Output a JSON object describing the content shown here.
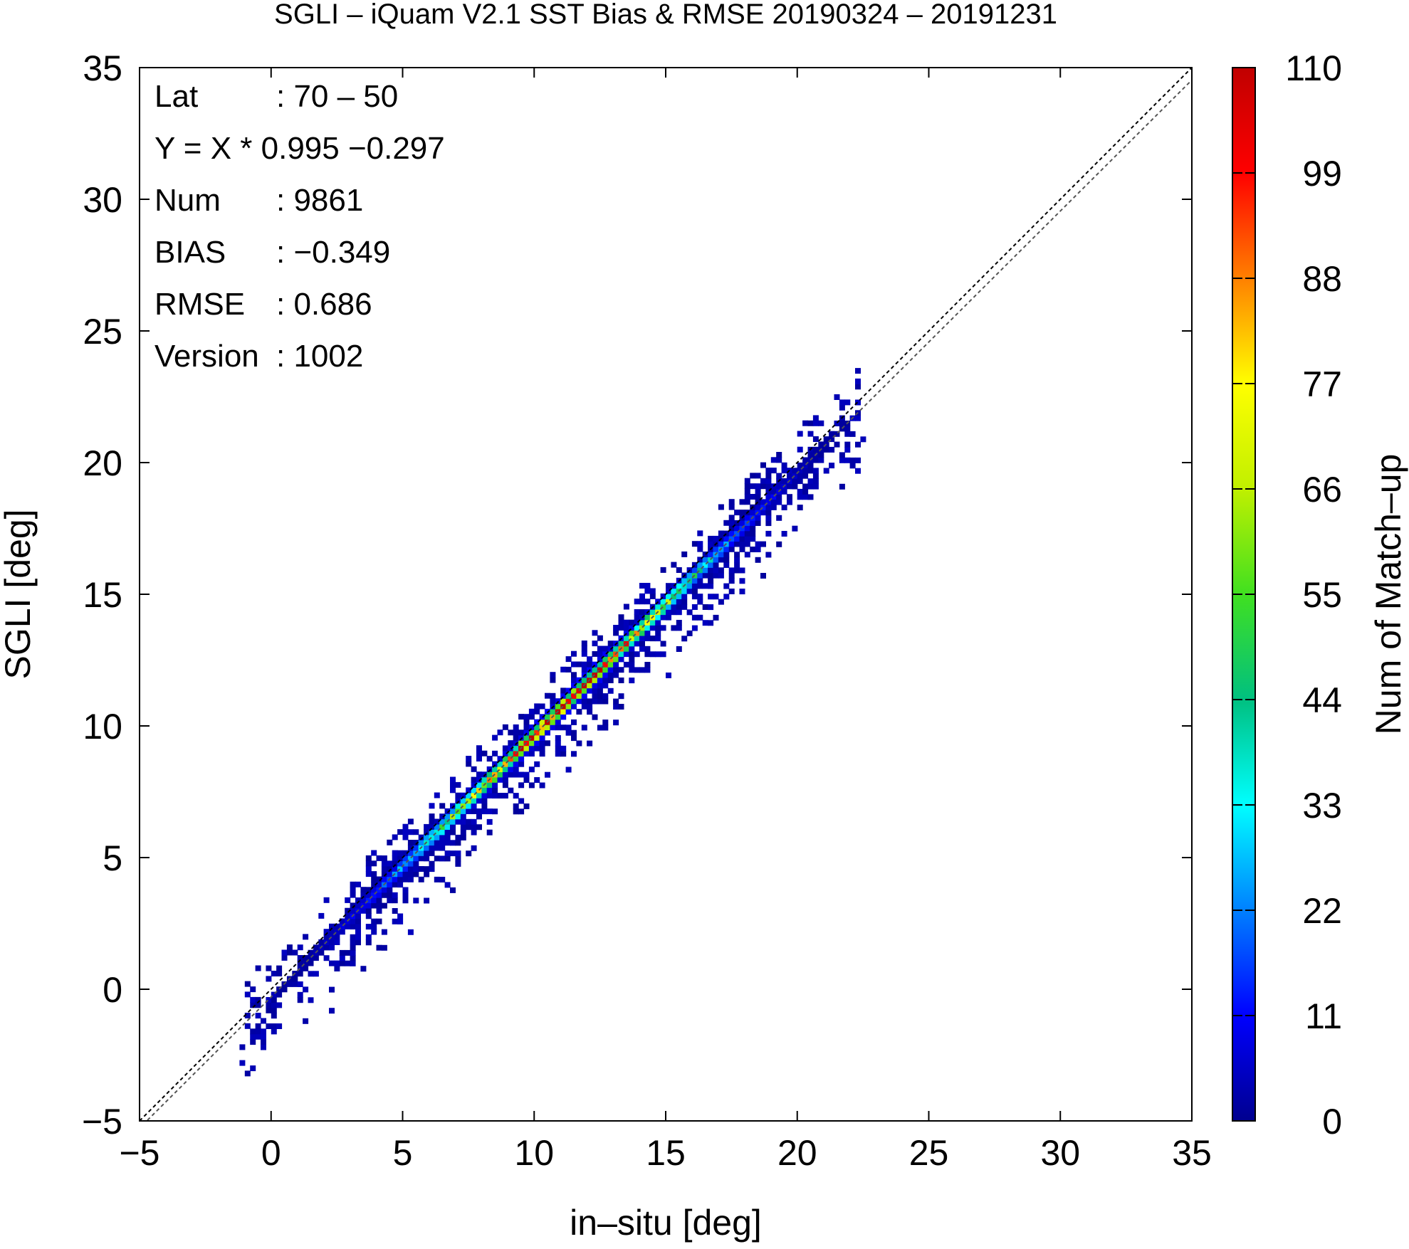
{
  "chart_data": {
    "type": "heatmap",
    "title": "SGLI – iQuam V2.1 SST Bias & RMSE 20190324 – 20191231",
    "xlabel": "in–situ [deg]",
    "ylabel": "SGLI [deg]",
    "xlim": [
      -5,
      35
    ],
    "ylim": [
      -5,
      35
    ],
    "x_ticks": [
      "−5",
      "0",
      "5",
      "10",
      "15",
      "20",
      "25",
      "30",
      "35"
    ],
    "y_ticks": [
      "−5",
      "0",
      "5",
      "10",
      "15",
      "20",
      "25",
      "30",
      "35"
    ],
    "stats": [
      {
        "label": "Lat",
        "value": ": 70 – 50"
      },
      {
        "label": "Y = X * 0.995 −0.297",
        "value": ""
      },
      {
        "label": "Num",
        "value": ": 9861"
      },
      {
        "label": "BIAS",
        "value": ": −0.349"
      },
      {
        "label": "RMSE",
        "value": ": 0.686"
      },
      {
        "label": "Version",
        "value": ": 1002"
      }
    ],
    "regression": {
      "slope": 0.995,
      "intercept": -0.297
    },
    "reference_line": {
      "slope": 1,
      "intercept": 0
    },
    "colorbar": {
      "label": "Num of Match–up",
      "min": 0,
      "max": 110,
      "ticks": [
        "0",
        "11",
        "22",
        "33",
        "44",
        "55",
        "66",
        "77",
        "88",
        "99",
        "110"
      ],
      "colors": [
        "#00008f",
        "#0000ff",
        "#0080ff",
        "#00ffff",
        "#00c080",
        "#40e020",
        "#c0f000",
        "#ffff00",
        "#ff8000",
        "#ff0000",
        "#c00000"
      ]
    },
    "density_model": {
      "x_range": [
        -1.2,
        22.5
      ],
      "peak_x": 11,
      "peak_count": 110
    }
  }
}
